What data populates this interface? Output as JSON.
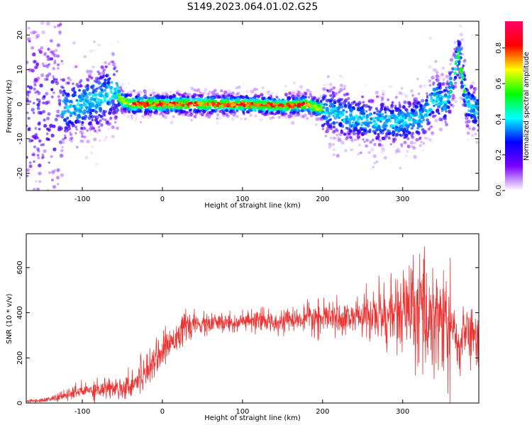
{
  "title": "S149.2023.064.01.02.G25",
  "chart_data": [
    {
      "type": "heatmap",
      "xlabel": "Height of straight line (km)",
      "ylabel": "Frequency (Hz)",
      "xlim": [
        -170,
        395
      ],
      "ylim": [
        -25,
        24
      ],
      "xticks": [
        -100,
        0,
        100,
        200,
        300
      ],
      "yticks": [
        -20,
        -10,
        0,
        10,
        20
      ],
      "colorbar": {
        "label": "Normalized spectral amplitude",
        "range": [
          0,
          0.95
        ],
        "ticks": [
          "0.0",
          "0.2",
          "0.4",
          "0.6",
          "0.8"
        ],
        "colors": [
          "#ffffff",
          "#7c00ff",
          "#0000ff",
          "#00ffff",
          "#00ff00",
          "#ffff00",
          "#ff0000",
          "#ff0066"
        ]
      },
      "ridge_center_hz": {
        "x": [
          -130,
          -100,
          -75,
          -60,
          -50,
          -40,
          0,
          100,
          150,
          180,
          200,
          230,
          260,
          300,
          325,
          340,
          355,
          370,
          380,
          395
        ],
        "y": [
          -2,
          0,
          2,
          4,
          1,
          0,
          0,
          0,
          -0.5,
          0,
          -1.5,
          -3.5,
          -5,
          -5,
          -4,
          2,
          0,
          15,
          0,
          -2
        ]
      }
    },
    {
      "type": "line",
      "xlabel": "Height of straight line (km)",
      "ylabel": "SNR (10 * v/v)",
      "xlim": [
        -170,
        395
      ],
      "ylim": [
        0,
        750
      ],
      "xticks": [
        -100,
        0,
        100,
        200,
        300
      ],
      "yticks": [
        0,
        200,
        400,
        600
      ],
      "line_color": "#ee3333",
      "series": [
        {
          "x": [
            -170,
            -150,
            -130,
            -110,
            -90,
            -70,
            -50,
            -40,
            -30,
            -20,
            -10,
            0,
            10,
            20,
            30,
            40,
            60,
            80,
            100,
            120,
            150,
            180,
            200,
            230,
            250,
            280,
            300,
            310,
            320,
            340,
            360,
            370,
            375,
            380,
            395
          ],
          "y": [
            8,
            12,
            25,
            45,
            60,
            65,
            70,
            80,
            110,
            150,
            200,
            230,
            270,
            310,
            340,
            345,
            350,
            355,
            360,
            360,
            365,
            370,
            375,
            380,
            385,
            390,
            400,
            410,
            400,
            390,
            340,
            240,
            300,
            330,
            250
          ]
        }
      ]
    }
  ]
}
